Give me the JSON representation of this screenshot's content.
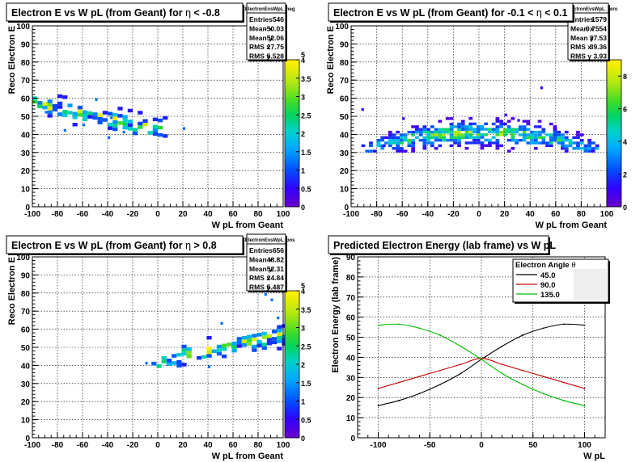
{
  "chart_data": [
    {
      "type": "heatmap",
      "title_parts": [
        "Electron E vs W pL (from Geant) for ",
        "η",
        " < -0.8"
      ],
      "xlabel": "W pL from Geant",
      "ylabel": "Reco Electron E",
      "xlim": [
        -100,
        100
      ],
      "ylim": [
        0,
        100
      ],
      "xticks": [
        "-100",
        "-80",
        "-60",
        "-40",
        "-20",
        "0",
        "20",
        "40",
        "60",
        "80",
        "100"
      ],
      "yticks": [
        "0",
        "10",
        "20",
        "30",
        "40",
        "50",
        "60",
        "70",
        "80",
        "90",
        "100"
      ],
      "grid": true,
      "zmax": 4,
      "colorbar_ticks": [
        "0",
        "0.5",
        "1",
        "1.5",
        "2",
        "2.5",
        "3",
        "3.5",
        "4"
      ],
      "colorbar_top_label": "5",
      "stats": {
        "name": "MCElectronEvsWpL_neg",
        "rows": [
          [
            "Entries",
            "546"
          ],
          [
            "Mean x",
            "-50.03"
          ],
          [
            "Mean y",
            "52.06"
          ],
          [
            "RMS x",
            "27.75"
          ],
          [
            "RMS y",
            "5.528"
          ]
        ]
      },
      "band": {
        "x_range": [
          -100,
          5
        ],
        "y_center": [
          56,
          41
        ],
        "y_spread": 3.5,
        "fill_start": 0.95,
        "fill_end": 0.55
      },
      "outliers": [
        [
          -75,
          41
        ],
        [
          -60,
          44
        ],
        [
          -50,
          58
        ],
        [
          -40,
          37
        ],
        [
          -38,
          48
        ],
        [
          20,
          42
        ],
        [
          -90,
          51
        ],
        [
          -28,
          40
        ]
      ]
    },
    {
      "type": "heatmap",
      "title_parts": [
        "Electron E vs W pL (from Geant) for -0.1 < ",
        "η",
        " < 0.1"
      ],
      "xlabel": "W pL from Geant",
      "ylabel": "Reco Electron E",
      "xlim": [
        -100,
        100
      ],
      "ylim": [
        0,
        100
      ],
      "xticks": [
        "-100",
        "-80",
        "-60",
        "-40",
        "-20",
        "0",
        "20",
        "40",
        "60",
        "80",
        "100"
      ],
      "yticks": [
        "0",
        "10",
        "20",
        "30",
        "40",
        "50",
        "60",
        "70",
        "80",
        "90",
        "100"
      ],
      "grid": true,
      "zmax": 9,
      "colorbar_ticks": [
        "0",
        "2",
        "4",
        "6",
        "8"
      ],
      "colorbar_top_label": "",
      "stats": {
        "name": "MCElectronEvsWpL_zero",
        "rows": [
          [
            "Entries",
            "1579"
          ],
          [
            "Mean x",
            "0.7554"
          ],
          [
            "Mean y",
            "37.53"
          ],
          [
            "RMS x",
            "39.36"
          ],
          [
            "RMS y",
            "3.93"
          ]
        ]
      },
      "arc": {
        "x_range": [
          -92,
          92
        ],
        "peak": 40,
        "edge": 31,
        "spread": 4.5,
        "floor": 30
      },
      "outliers": [
        [
          -92,
          53
        ],
        [
          48,
          65
        ],
        [
          20,
          50
        ],
        [
          -75,
          33
        ],
        [
          88,
          30
        ],
        [
          -60,
          48
        ],
        [
          30,
          47
        ]
      ]
    },
    {
      "type": "heatmap",
      "title_parts": [
        "Electron E vs W pL (from Geant) for ",
        "η",
        " > 0.8"
      ],
      "xlabel": "W pL from Geant",
      "ylabel": "Reco Electron E",
      "xlim": [
        -100,
        100
      ],
      "ylim": [
        0,
        100
      ],
      "xticks": [
        "-100",
        "-80",
        "-60",
        "-40",
        "-20",
        "0",
        "20",
        "40",
        "60",
        "80",
        "100"
      ],
      "yticks": [
        "0",
        "10",
        "20",
        "30",
        "40",
        "50",
        "60",
        "70",
        "80",
        "90",
        "100"
      ],
      "grid": true,
      "zmax": 4,
      "colorbar_ticks": [
        "0",
        "0.5",
        "1",
        "1.5",
        "2",
        "2.5",
        "3",
        "3.5",
        "4"
      ],
      "colorbar_top_label": "5",
      "stats": {
        "name": "MCElectronEvsWpL_pos",
        "rows": [
          [
            "Entries",
            "656"
          ],
          [
            "Mean x",
            "48.82"
          ],
          [
            "Mean y",
            "52.31"
          ],
          [
            "RMS x",
            "24.84"
          ],
          [
            "RMS y",
            "5.487"
          ]
        ]
      },
      "band": {
        "x_range": [
          -5,
          100
        ],
        "y_center": [
          41,
          56
        ],
        "y_spread": 3.5,
        "fill_start": 0.55,
        "fill_end": 0.95
      },
      "outliers": [
        [
          90,
          75
        ],
        [
          85,
          78
        ],
        [
          50,
          62
        ],
        [
          40,
          38
        ],
        [
          75,
          48
        ],
        [
          -10,
          40
        ],
        [
          95,
          65
        ]
      ]
    },
    {
      "type": "line",
      "title": "Predicted Electron Energy (lab frame) vs W pL",
      "xlabel": "W pL",
      "ylabel": "Electron Energy (lab frame)",
      "xlim": [
        -120,
        120
      ],
      "ylim": [
        0,
        90
      ],
      "xticks": [
        -100,
        -50,
        0,
        50,
        100
      ],
      "yticks": [
        0,
        10,
        20,
        30,
        40,
        50,
        60,
        70,
        80,
        90
      ],
      "grid": true,
      "legend_title_parts": [
        "Electron Angle ",
        "θ"
      ],
      "legend_position": "top-right",
      "series": [
        {
          "name": "45.0",
          "color": "#000000",
          "x": [
            -100,
            -80,
            -60,
            -40,
            -20,
            0,
            20,
            40,
            60,
            80,
            100
          ],
          "y": [
            16,
            18.5,
            22,
            26.5,
            32,
            39,
            45.5,
            51,
            54.5,
            56.5,
            56
          ]
        },
        {
          "name": "90.0",
          "color": "#cc0000",
          "x": [
            -100,
            -80,
            -60,
            -40,
            -20,
            0,
            20,
            40,
            60,
            80,
            100
          ],
          "y": [
            24.5,
            27.5,
            30.5,
            33.5,
            36.5,
            39.5,
            36.5,
            33.5,
            30.5,
            27.5,
            24.5
          ]
        },
        {
          "name": "135.0",
          "color": "#00bb00",
          "x": [
            -100,
            -80,
            -60,
            -40,
            -20,
            0,
            20,
            40,
            60,
            80,
            100
          ],
          "y": [
            56,
            56.5,
            54.5,
            51,
            45.5,
            39,
            32,
            26.5,
            22,
            18.5,
            16
          ]
        }
      ]
    }
  ]
}
